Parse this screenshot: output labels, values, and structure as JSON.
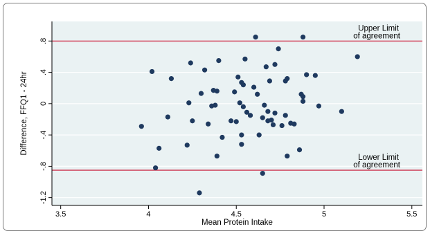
{
  "chart_data": {
    "type": "scatter",
    "title": "",
    "xlabel": "Mean Protein Intake",
    "ylabel": "Difference, FFQ1 - 24hr",
    "xlim": [
      3.45,
      5.56
    ],
    "ylim": [
      -1.3,
      1.05
    ],
    "x_ticks": [
      3.5,
      4,
      4.5,
      5,
      5.5
    ],
    "x_tick_labels": [
      "3.5",
      "4",
      "4.5",
      "5",
      "5.5"
    ],
    "y_ticks": [
      0.8,
      0.4,
      0,
      -0.4,
      -0.8,
      -1.2
    ],
    "y_tick_labels": [
      ".8",
      ".4",
      "0",
      "-.4",
      "-.8",
      "-1.2"
    ],
    "grid": "horizontal",
    "reference_lines": [
      {
        "value": 0.8,
        "label_lines": [
          "Upper Limit",
          "of agreement"
        ],
        "color": "#c8102e"
      },
      {
        "value": -0.85,
        "label_lines": [
          "Lower Limit",
          "of agreement"
        ],
        "color": "#c8102e"
      }
    ],
    "marker_color": "#1f3a5f",
    "background_color": "#eaf2f3",
    "points": [
      {
        "x": 3.96,
        "y": -0.29
      },
      {
        "x": 4.02,
        "y": 0.41
      },
      {
        "x": 4.04,
        "y": -0.82
      },
      {
        "x": 4.06,
        "y": -0.57
      },
      {
        "x": 4.11,
        "y": -0.17
      },
      {
        "x": 4.13,
        "y": 0.32
      },
      {
        "x": 4.22,
        "y": -0.53
      },
      {
        "x": 4.23,
        "y": 0.01
      },
      {
        "x": 4.24,
        "y": 0.52
      },
      {
        "x": 4.25,
        "y": -0.22
      },
      {
        "x": 4.29,
        "y": -1.14
      },
      {
        "x": 4.3,
        "y": 0.13
      },
      {
        "x": 4.32,
        "y": 0.43
      },
      {
        "x": 4.34,
        "y": -0.26
      },
      {
        "x": 4.36,
        "y": -0.03
      },
      {
        "x": 4.37,
        "y": 0.17
      },
      {
        "x": 4.38,
        "y": -0.02
      },
      {
        "x": 4.39,
        "y": 0.16
      },
      {
        "x": 4.39,
        "y": -0.67
      },
      {
        "x": 4.4,
        "y": 0.55
      },
      {
        "x": 4.42,
        "y": -0.43
      },
      {
        "x": 4.47,
        "y": -0.22
      },
      {
        "x": 4.49,
        "y": 0.15
      },
      {
        "x": 4.5,
        "y": -0.23
      },
      {
        "x": 4.51,
        "y": 0.34
      },
      {
        "x": 4.52,
        "y": 0.01
      },
      {
        "x": 4.53,
        "y": 0.27
      },
      {
        "x": 4.53,
        "y": -0.4
      },
      {
        "x": 4.53,
        "y": -0.52
      },
      {
        "x": 4.54,
        "y": 0.24
      },
      {
        "x": 4.54,
        "y": -0.04
      },
      {
        "x": 4.55,
        "y": 0.57
      },
      {
        "x": 4.56,
        "y": -0.11
      },
      {
        "x": 4.58,
        "y": -0.15
      },
      {
        "x": 4.6,
        "y": 0.21
      },
      {
        "x": 4.61,
        "y": 0.85
      },
      {
        "x": 4.62,
        "y": 0.12
      },
      {
        "x": 4.63,
        "y": -0.4
      },
      {
        "x": 4.65,
        "y": -0.89
      },
      {
        "x": 4.65,
        "y": -0.18
      },
      {
        "x": 4.66,
        "y": -0.02
      },
      {
        "x": 4.67,
        "y": 0.47
      },
      {
        "x": 4.68,
        "y": -0.1
      },
      {
        "x": 4.68,
        "y": -0.22
      },
      {
        "x": 4.69,
        "y": 0.29
      },
      {
        "x": 4.7,
        "y": -0.21
      },
      {
        "x": 4.71,
        "y": -0.27
      },
      {
        "x": 4.72,
        "y": -0.12
      },
      {
        "x": 4.72,
        "y": 0.5
      },
      {
        "x": 4.74,
        "y": 0.7
      },
      {
        "x": 4.76,
        "y": -0.28
      },
      {
        "x": 4.78,
        "y": -0.15
      },
      {
        "x": 4.78,
        "y": 0.29
      },
      {
        "x": 4.79,
        "y": 0.32
      },
      {
        "x": 4.79,
        "y": -0.67
      },
      {
        "x": 4.81,
        "y": -0.25
      },
      {
        "x": 4.83,
        "y": -0.26
      },
      {
        "x": 4.86,
        "y": -0.59
      },
      {
        "x": 4.87,
        "y": 0.12
      },
      {
        "x": 4.88,
        "y": 0.09
      },
      {
        "x": 4.88,
        "y": 0.03
      },
      {
        "x": 4.88,
        "y": 0.85
      },
      {
        "x": 4.9,
        "y": 0.37
      },
      {
        "x": 4.95,
        "y": 0.36
      },
      {
        "x": 4.97,
        "y": -0.03
      },
      {
        "x": 5.1,
        "y": -0.1
      },
      {
        "x": 5.19,
        "y": 0.6
      }
    ]
  }
}
